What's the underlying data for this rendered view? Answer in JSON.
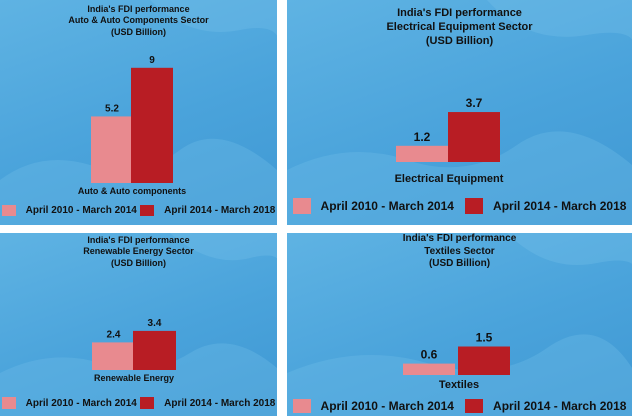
{
  "colors": {
    "series1": "#e88a8f",
    "series2": "#b81d24",
    "panel_bg": "#55acdf"
  },
  "chart_data": [
    {
      "type": "bar",
      "title": "India's FDI performance",
      "subtitle": "Auto & Auto Components Sector",
      "unit": "(USD Billion)",
      "categories": [
        "Auto & Auto components"
      ],
      "series": [
        {
          "name": "April 2010 - March 2014",
          "values": [
            5.2
          ]
        },
        {
          "name": "April 2014 - March 2018",
          "values": [
            9
          ]
        }
      ],
      "ylim": [
        0,
        9
      ],
      "legend": "bottom"
    },
    {
      "type": "bar",
      "title": "India's FDI performance",
      "subtitle": "Electrical Equipment Sector",
      "unit": "(USD Billion)",
      "categories": [
        "Electrical Equipment"
      ],
      "series": [
        {
          "name": "April 2010 - March 2014",
          "values": [
            1.2
          ]
        },
        {
          "name": "April 2014 - March 2018",
          "values": [
            3.7
          ]
        }
      ],
      "ylim": [
        0,
        9
      ],
      "legend": "bottom"
    },
    {
      "type": "bar",
      "title": "India's FDI performance",
      "subtitle": "Renewable Energy Sector",
      "unit": "(USD Billion)",
      "categories": [
        "Renewable Energy"
      ],
      "series": [
        {
          "name": "April 2010 - March 2014",
          "values": [
            2.4
          ]
        },
        {
          "name": "April 2014 - March 2018",
          "values": [
            3.4
          ]
        }
      ],
      "ylim": [
        0,
        9
      ],
      "legend": "bottom"
    },
    {
      "type": "bar",
      "title": "India's FDI performance",
      "subtitle": "Textiles Sector",
      "unit": "(USD Billion)",
      "categories": [
        "Textiles"
      ],
      "series": [
        {
          "name": "April 2010 - March 2014",
          "values": [
            0.6
          ]
        },
        {
          "name": "April 2014 - March 2018",
          "values": [
            1.5
          ]
        }
      ],
      "ylim": [
        0,
        9
      ],
      "legend": "bottom"
    }
  ]
}
